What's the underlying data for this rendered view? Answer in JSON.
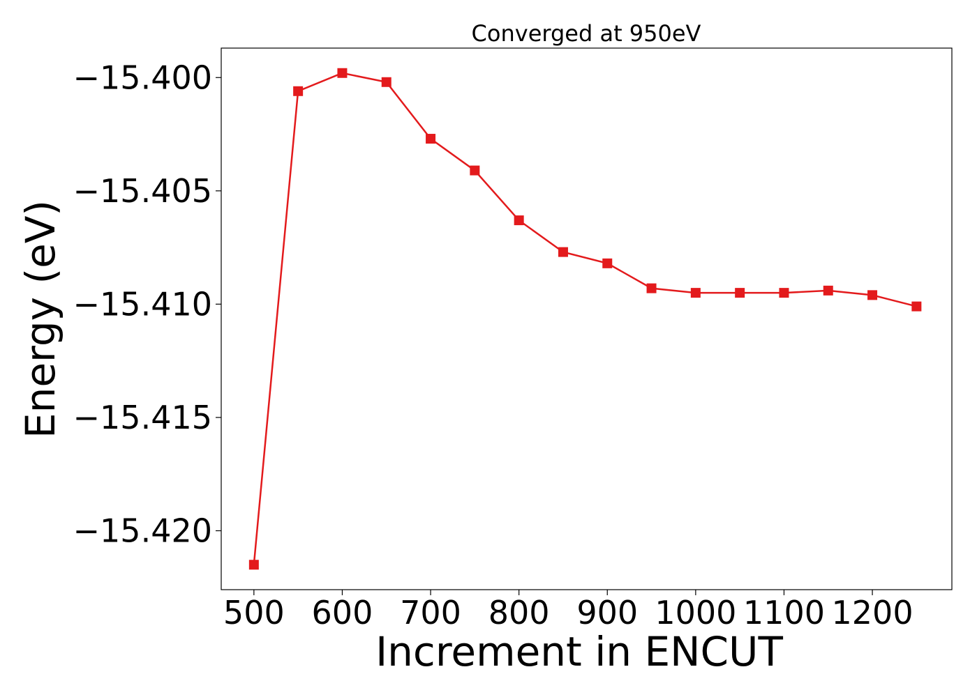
{
  "chart_data": {
    "type": "line",
    "title": "Converged at 950eV",
    "xlabel": "Increment in ENCUT",
    "ylabel": "Energy (eV)",
    "x_ticks": [
      500,
      600,
      700,
      800,
      900,
      1000,
      1100,
      1200
    ],
    "x_tick_labels": [
      "500",
      "600",
      "700",
      "800",
      "900",
      "1000",
      "1100",
      "1200"
    ],
    "y_ticks": [
      -15.4,
      -15.405,
      -15.41,
      -15.415,
      -15.42
    ],
    "y_tick_labels": [
      "−15.400",
      "−15.405",
      "−15.410",
      "−15.415",
      "−15.420"
    ],
    "xlim": [
      463,
      1290
    ],
    "ylim": [
      -15.4226,
      -15.3987
    ],
    "grid": false,
    "series": [
      {
        "color": "#e31a1c",
        "marker": "square",
        "x": [
          500,
          550,
          600,
          650,
          700,
          750,
          800,
          850,
          900,
          950,
          1000,
          1050,
          1100,
          1150,
          1200,
          1250
        ],
        "values": [
          -15.4215,
          -15.4006,
          -15.3998,
          -15.4002,
          -15.4027,
          -15.4041,
          -15.4063,
          -15.4077,
          -15.4082,
          -15.4093,
          -15.4095,
          -15.4095,
          -15.4095,
          -15.4094,
          -15.4096,
          -15.4101
        ]
      }
    ]
  }
}
